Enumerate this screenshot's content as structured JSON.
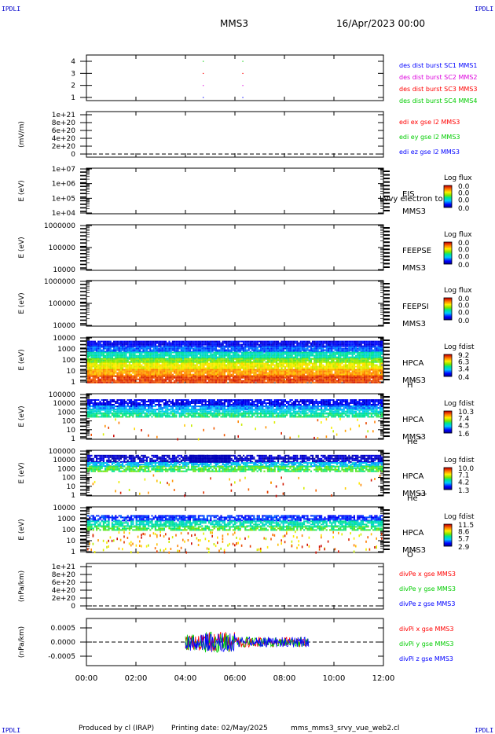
{
  "header": {
    "corner_tl": "IPDLI",
    "corner_tr": "IPDLI",
    "corner_bl": "IPDLI",
    "corner_br": "IPDLI",
    "spacecraft": "MMS3",
    "date": "16/Apr/2023 00:00"
  },
  "footer": {
    "produced_by": "Produced by cl (IRAP)",
    "printing_date": "Printing date: 02/May/2025",
    "script_name": "mms_mms3_srvy_vue_web2.cl"
  },
  "x_axis": {
    "ticks": [
      "00:00",
      "02:00",
      "04:00",
      "06:00",
      "08:00",
      "10:00",
      "12:00"
    ],
    "range_hours": [
      0,
      12
    ]
  },
  "colors": {
    "blue": "#0000ff",
    "magenta": "#dd00dd",
    "red": "#ff0000",
    "green": "#00cc00"
  },
  "panels": [
    {
      "id": "des-dist",
      "ylabel": "",
      "yticks": [
        "1",
        "2",
        "3",
        "4"
      ],
      "legend": [
        {
          "text": "des dist burst SC1 MMS1",
          "color": "#0000ff"
        },
        {
          "text": "des dist burst SC2 MMS2",
          "color": "#dd00dd"
        },
        {
          "text": "des dist burst SC3 MMS3",
          "color": "#ff0000"
        },
        {
          "text": "des dist burst SC4 MMS4",
          "color": "#00cc00"
        }
      ]
    },
    {
      "id": "edi",
      "ylabel": "(mV/m)",
      "yticks": [
        "0",
        "2e+20",
        "4e+20",
        "6e+20",
        "8e+20",
        "1e+21"
      ],
      "legend": [
        {
          "text": "edi ex gse l2 MMS3",
          "color": "#ff0000"
        },
        {
          "text": "edi ey gse l2 MMS3",
          "color": "#00cc00"
        },
        {
          "text": "edi ez gse l2 MMS3",
          "color": "#0000ff"
        }
      ]
    },
    {
      "id": "eis",
      "ylabel": "E (eV)",
      "yticks": [
        "1e+04",
        "1e+05",
        "1e+06",
        "1e+07"
      ],
      "name": "EIS",
      "overlay": "Lvvy electron to",
      "sc": "MMS3",
      "cbar_title": "Log flux",
      "cbar_ticks": [
        "0.0",
        "0.0",
        "0.0",
        "0.0"
      ]
    },
    {
      "id": "feepse",
      "ylabel": "E (eV)",
      "yticks": [
        "10000",
        "100000",
        "1000000"
      ],
      "name": "FEEPSE",
      "sc": "MMS3",
      "cbar_title": "Log flux",
      "cbar_ticks": [
        "0.0",
        "0.0",
        "0.0",
        "0.0"
      ]
    },
    {
      "id": "feepsi",
      "ylabel": "E (eV)",
      "yticks": [
        "10000",
        "100000",
        "1000000"
      ],
      "name": "FEEPSI",
      "sc": "MMS3",
      "cbar_title": "Log flux",
      "cbar_ticks": [
        "0.0",
        "0.0",
        "0.0",
        "0.0"
      ]
    },
    {
      "id": "hpca-h",
      "ylabel": "E (eV)",
      "yticks": [
        "1",
        "10",
        "100",
        "1000",
        "10000"
      ],
      "name": "HPCA",
      "sc": "MMS3",
      "species": "H",
      "species_sup": "+",
      "cbar_title": "Log fdist",
      "cbar_ticks": [
        "9.2",
        "6.3",
        "3.4",
        "0.4"
      ]
    },
    {
      "id": "hpca-he",
      "ylabel": "E (eV)",
      "yticks": [
        "1",
        "10",
        "100",
        "1000",
        "10000",
        "100000"
      ],
      "name": "HPCA",
      "sc": "MMS3",
      "species": "He",
      "species_sup": "+",
      "cbar_title": "Log fdist",
      "cbar_ticks": [
        "10.3",
        "7.4",
        "4.5",
        "1.6"
      ]
    },
    {
      "id": "hpca-hepp",
      "ylabel": "E (eV)",
      "yticks": [
        "1",
        "10",
        "100",
        "1000",
        "10000",
        "100000"
      ],
      "name": "HPCA",
      "sc": "MMS3",
      "species": "He",
      "species_sup": "++",
      "cbar_title": "Log fdist",
      "cbar_ticks": [
        "10.0",
        "7.1",
        "4.2",
        "1.3"
      ]
    },
    {
      "id": "hpca-o",
      "ylabel": "E (eV)",
      "yticks": [
        "1",
        "10",
        "100",
        "1000",
        "10000"
      ],
      "name": "HPCA",
      "sc": "MMS3",
      "species": "O",
      "species_sup": "+",
      "cbar_title": "Log fdist",
      "cbar_ticks": [
        "11.5",
        "8.6",
        "5.7",
        "2.9"
      ]
    },
    {
      "id": "divpe",
      "ylabel": "(nPa/km)",
      "yticks": [
        "0",
        "2e+20",
        "4e+20",
        "6e+20",
        "8e+20",
        "1e+21"
      ],
      "legend": [
        {
          "text": "divPe x gse MMS3",
          "color": "#ff0000"
        },
        {
          "text": "divPe y gse MMS3",
          "color": "#00cc00"
        },
        {
          "text": "divPe z gse MMS3",
          "color": "#0000ff"
        }
      ]
    },
    {
      "id": "divpi",
      "ylabel": "(nPa/km)",
      "yticks": [
        "-0.0005",
        "0.0000",
        "0.0005"
      ],
      "legend": [
        {
          "text": "divPi x gse MMS3",
          "color": "#ff0000"
        },
        {
          "text": "divPi y gse MMS3",
          "color": "#00cc00"
        },
        {
          "text": "divPi z gse MMS3",
          "color": "#0000ff"
        }
      ]
    }
  ],
  "chart_data": [
    {
      "type": "scatter",
      "panel": "des-dist",
      "x_hours": [
        4.7,
        4.7,
        4.7,
        4.7,
        6.3,
        6.3,
        6.3,
        6.3
      ],
      "y": [
        1,
        2,
        3,
        4,
        1,
        2,
        3,
        4
      ],
      "ylim": [
        0.5,
        4.5
      ]
    },
    {
      "type": "line",
      "panel": "edi",
      "ylim": [
        0,
        1e+21
      ],
      "values": []
    },
    {
      "type": "heatmap",
      "panel": "hpca-h",
      "x_range_hours": [
        0,
        12
      ],
      "ylim": [
        1,
        30000
      ],
      "y_scale": "log"
    },
    {
      "type": "heatmap",
      "panel": "hpca-he",
      "x_range_hours": [
        0,
        12
      ],
      "ylim": [
        1,
        100000
      ],
      "y_scale": "log"
    },
    {
      "type": "heatmap",
      "panel": "hpca-hepp",
      "x_range_hours": [
        0,
        12
      ],
      "ylim": [
        1,
        100000
      ],
      "y_scale": "log"
    },
    {
      "type": "heatmap",
      "panel": "hpca-o",
      "x_range_hours": [
        0,
        12
      ],
      "ylim": [
        1,
        30000
      ],
      "y_scale": "log"
    },
    {
      "type": "line",
      "panel": "divpe",
      "ylim": [
        0,
        1e+21
      ],
      "values": []
    },
    {
      "type": "line",
      "panel": "divpi",
      "x_range_hours": [
        4.0,
        9.0
      ],
      "ylim": [
        -0.0009,
        0.0009
      ],
      "amplitude_peak": 0.0005
    }
  ]
}
